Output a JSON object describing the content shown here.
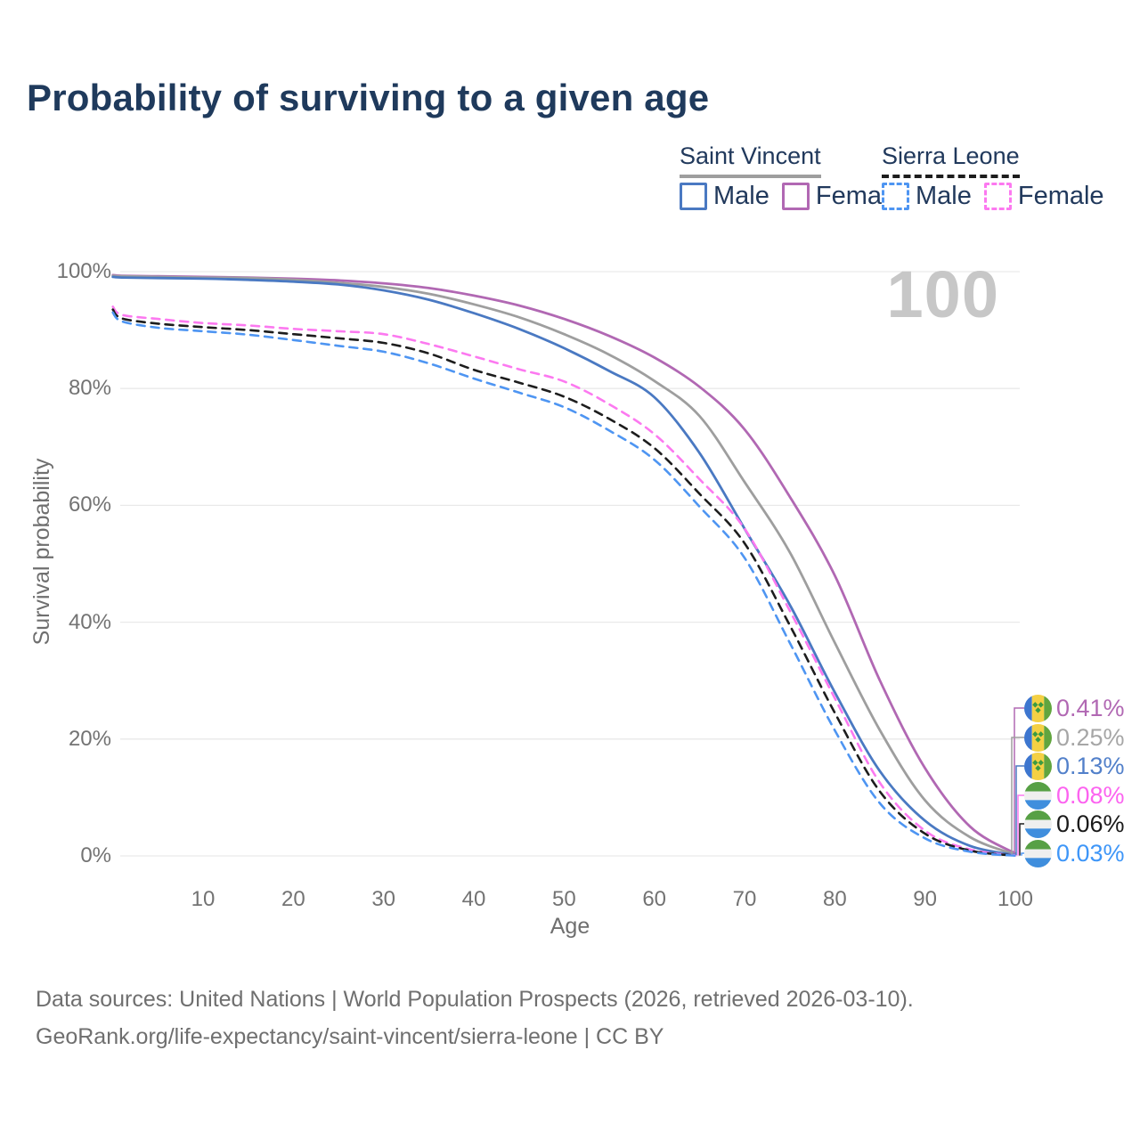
{
  "title": "Probability of surviving to a given age",
  "watermark_age": "100",
  "legend": {
    "groups": [
      {
        "label": "Saint Vincent",
        "underline_style": "solid",
        "underline_color": "#9e9e9e",
        "items": [
          {
            "label": "Male",
            "color": "#4a79c2",
            "dashed": false
          },
          {
            "label": "Female",
            "color": "#b168b3",
            "dashed": false
          }
        ]
      },
      {
        "label": "Sierra Leone",
        "underline_style": "dashed",
        "underline_color": "#1d1d1d",
        "items": [
          {
            "label": "Male",
            "color": "#4e95f2",
            "dashed": true
          },
          {
            "label": "Female",
            "color": "#fc79f0",
            "dashed": true
          }
        ]
      }
    ]
  },
  "axes": {
    "x": {
      "title": "Age",
      "min": 0,
      "max": 100,
      "ticks": [
        10,
        20,
        30,
        40,
        50,
        60,
        70,
        80,
        90,
        100
      ]
    },
    "y": {
      "title": "Survival probability",
      "min": 0,
      "max": 100,
      "ticks": [
        {
          "value": 0,
          "label": "0%"
        },
        {
          "value": 20,
          "label": "20%"
        },
        {
          "value": 40,
          "label": "40%"
        },
        {
          "value": 60,
          "label": "60%"
        },
        {
          "value": 80,
          "label": "80%"
        },
        {
          "value": 100,
          "label": "100%"
        }
      ]
    },
    "grid": true
  },
  "chart_data": {
    "type": "line",
    "title": "Probability of surviving to a given age",
    "xlabel": "Age",
    "ylabel": "Survival probability",
    "xlim": [
      0,
      100
    ],
    "ylim": [
      0,
      100
    ],
    "x": [
      0,
      1,
      5,
      10,
      15,
      20,
      25,
      30,
      35,
      40,
      45,
      50,
      55,
      60,
      65,
      70,
      75,
      80,
      85,
      90,
      95,
      100
    ],
    "series": [
      {
        "name": "Saint Vincent Female",
        "country": "Saint Vincent",
        "sex": "Female",
        "color": "#b168b3",
        "dashed": false,
        "flag": "saint-vincent",
        "end_label": "0.41%",
        "end_label_color": "#b168b3",
        "values": [
          99.4,
          99.3,
          99.2,
          99.1,
          99.0,
          98.8,
          98.5,
          98.0,
          97.2,
          95.9,
          94.2,
          91.9,
          89.0,
          85.3,
          80.3,
          73.0,
          61.5,
          48.0,
          30.0,
          15.0,
          5.0,
          0.41
        ]
      },
      {
        "name": "Saint Vincent Both sexes",
        "country": "Saint Vincent",
        "sex": "Both",
        "color": "#9e9e9e",
        "dashed": false,
        "flag": "saint-vincent",
        "end_label": "0.25%",
        "end_label_color": "#a6a6a6",
        "values": [
          99.3,
          99.2,
          99.1,
          99.0,
          98.9,
          98.6,
          98.1,
          97.4,
          96.2,
          94.4,
          92.2,
          89.3,
          85.8,
          81.3,
          75.3,
          64.0,
          52.0,
          36.5,
          21.5,
          9.5,
          3.2,
          0.25
        ]
      },
      {
        "name": "Saint Vincent Male",
        "country": "Saint Vincent",
        "sex": "Male",
        "color": "#4a79c2",
        "dashed": false,
        "flag": "saint-vincent",
        "end_label": "0.13%",
        "end_label_color": "#5280ca",
        "values": [
          99.1,
          99.0,
          98.9,
          98.8,
          98.6,
          98.3,
          97.8,
          96.8,
          95.2,
          92.9,
          90.2,
          86.9,
          83.0,
          78.5,
          69.0,
          56.0,
          43.0,
          28.0,
          14.5,
          6.0,
          1.7,
          0.13
        ]
      },
      {
        "name": "Sierra Leone Female",
        "country": "Sierra Leone",
        "sex": "Female",
        "color": "#fc79f0",
        "dashed": true,
        "flag": "sierra-leone",
        "end_label": "0.08%",
        "end_label_color": "#fc63f0",
        "values": [
          94.0,
          92.6,
          91.9,
          91.2,
          90.8,
          90.2,
          89.8,
          89.3,
          87.6,
          85.5,
          83.3,
          81.2,
          77.3,
          72.2,
          64.5,
          56.0,
          42.0,
          27.0,
          12.5,
          4.3,
          1.1,
          0.08
        ]
      },
      {
        "name": "Sierra Leone Both sexes",
        "country": "Sierra Leone",
        "sex": "Both",
        "color": "#1d1d1d",
        "dashed": true,
        "flag": "sierra-leone",
        "end_label": "0.06%",
        "end_label_color": "#1a1a1a",
        "values": [
          93.5,
          92.0,
          91.1,
          90.5,
          90.0,
          89.3,
          88.6,
          87.8,
          86.0,
          83.2,
          81.0,
          78.6,
          74.8,
          69.8,
          62.0,
          53.5,
          39.5,
          24.5,
          11.0,
          3.8,
          0.9,
          0.06
        ]
      },
      {
        "name": "Sierra Leone Male",
        "country": "Sierra Leone",
        "sex": "Male",
        "color": "#4e95f2",
        "dashed": true,
        "flag": "sierra-leone",
        "end_label": "0.03%",
        "end_label_color": "#3e96f8",
        "values": [
          93.0,
          91.5,
          90.4,
          89.8,
          89.2,
          88.3,
          87.3,
          86.3,
          84.3,
          81.7,
          79.3,
          76.8,
          72.8,
          67.8,
          59.8,
          51.0,
          36.5,
          21.5,
          9.0,
          3.0,
          0.7,
          0.03
        ]
      }
    ],
    "legend_position": "top-right",
    "grid": true
  },
  "footer": {
    "line1": "Data sources: United Nations | World Population Prospects (2026, retrieved 2026-03-10).",
    "line2": "GeoRank.org/life-expectancy/saint-vincent/sierra-leone | CC BY"
  }
}
